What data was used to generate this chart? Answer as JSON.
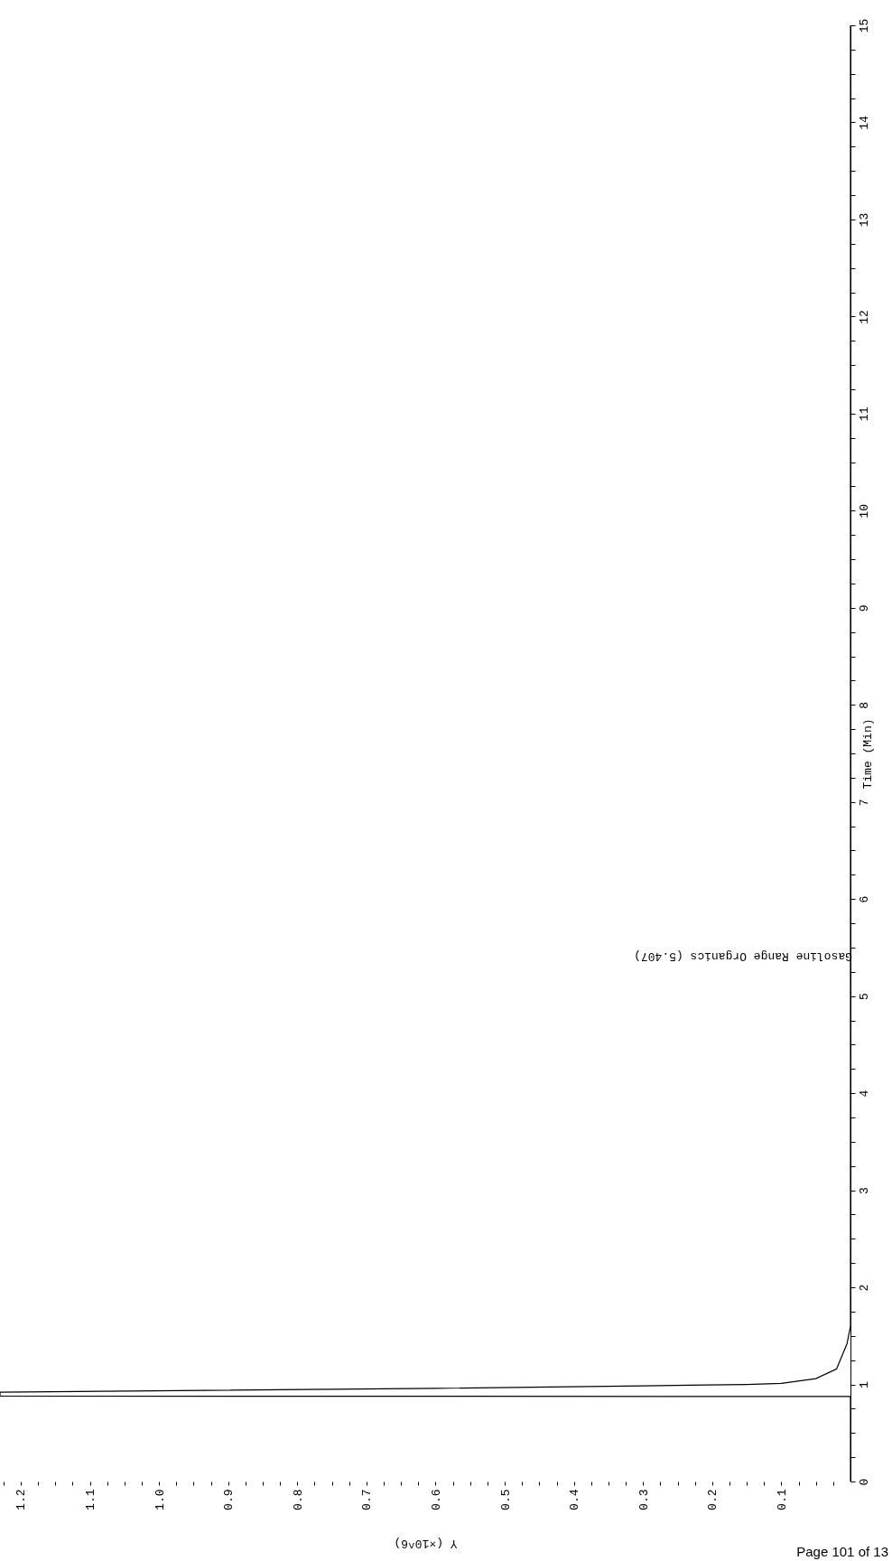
{
  "chart_data": {
    "type": "line",
    "xlabel": "Y (×10^6)",
    "ylabel": "Time (Min)",
    "series": [
      {
        "color": "#000000",
        "x": [
          0,
          0,
          0,
          1.23,
          1.23,
          0.6,
          0.3,
          0.15,
          0.1,
          0.05,
          0.02,
          0.005,
          0,
          0
        ],
        "values": [
          0,
          0.86,
          0.875,
          0.88,
          0.92,
          0.96,
          0.985,
          1.0,
          1.01,
          1.06,
          1.16,
          1.42,
          1.6,
          15
        ]
      }
    ],
    "xlim": [
      1.23,
      0
    ],
    "ylim": [
      0,
      15
    ],
    "yticks": [
      0,
      {
        "value": 0.25,
        "label": null
      },
      {
        "value": 0.5,
        "label": null
      },
      {
        "value": 0.75,
        "label": null
      },
      1,
      {
        "value": 1.25,
        "label": null
      },
      {
        "value": 1.5,
        "label": null
      },
      {
        "value": 1.75,
        "label": null
      },
      2,
      {
        "value": 2.25,
        "label": null
      },
      {
        "value": 2.5,
        "label": null
      },
      {
        "value": 2.75,
        "label": null
      },
      3,
      {
        "value": 3.25,
        "label": null
      },
      {
        "value": 3.5,
        "label": null
      },
      {
        "value": 3.75,
        "label": null
      },
      4,
      {
        "value": 4.25,
        "label": null
      },
      {
        "value": 4.5,
        "label": null
      },
      {
        "value": 4.75,
        "label": null
      },
      5,
      {
        "value": 5.25,
        "label": null
      },
      {
        "value": 5.5,
        "label": null
      },
      {
        "value": 5.75,
        "label": null
      },
      6,
      {
        "value": 6.25,
        "label": null
      },
      {
        "value": 6.5,
        "label": null
      },
      {
        "value": 6.75,
        "label": null
      },
      7,
      {
        "value": 7.25,
        "label": null
      },
      {
        "value": 7.5,
        "label": null
      },
      {
        "value": 7.75,
        "label": null
      },
      8,
      {
        "value": 8.25,
        "label": null
      },
      {
        "value": 8.5,
        "label": null
      },
      {
        "value": 8.75,
        "label": null
      },
      9,
      {
        "value": 9.25,
        "label": null
      },
      {
        "value": 9.5,
        "label": null
      },
      {
        "value": 9.75,
        "label": null
      },
      10,
      {
        "value": 10.25,
        "label": null
      },
      {
        "value": 10.5,
        "label": null
      },
      {
        "value": 10.75,
        "label": null
      },
      11,
      {
        "value": 11.25,
        "label": null
      },
      {
        "value": 11.5,
        "label": null
      },
      {
        "value": 11.75,
        "label": null
      },
      12,
      {
        "value": 12.25,
        "label": null
      },
      {
        "value": 12.5,
        "label": null
      },
      {
        "value": 12.75,
        "label": null
      },
      13,
      {
        "value": 13.25,
        "label": null
      },
      {
        "value": 13.5,
        "label": null
      },
      {
        "value": 13.75,
        "label": null
      },
      14,
      {
        "value": 14.25,
        "label": null
      },
      {
        "value": 14.5,
        "label": null
      },
      {
        "value": 14.75,
        "label": null
      },
      15
    ],
    "xticks": [
      {
        "value": 0.025,
        "label": null
      },
      {
        "value": 0.05,
        "label": null
      },
      {
        "value": 0.075,
        "label": null
      },
      0.1,
      {
        "value": 0.125,
        "label": null
      },
      {
        "value": 0.15,
        "label": null
      },
      {
        "value": 0.175,
        "label": null
      },
      0.2,
      {
        "value": 0.225,
        "label": null
      },
      {
        "value": 0.25,
        "label": null
      },
      {
        "value": 0.275,
        "label": null
      },
      0.3,
      {
        "value": 0.325,
        "label": null
      },
      {
        "value": 0.35,
        "label": null
      },
      {
        "value": 0.375,
        "label": null
      },
      0.4,
      {
        "value": 0.425,
        "label": null
      },
      {
        "value": 0.45,
        "label": null
      },
      {
        "value": 0.475,
        "label": null
      },
      0.5,
      {
        "value": 0.525,
        "label": null
      },
      {
        "value": 0.55,
        "label": null
      },
      {
        "value": 0.575,
        "label": null
      },
      0.6,
      {
        "value": 0.625,
        "label": null
      },
      {
        "value": 0.65,
        "label": null
      },
      {
        "value": 0.675,
        "label": null
      },
      0.7,
      {
        "value": 0.725,
        "label": null
      },
      {
        "value": 0.75,
        "label": null
      },
      {
        "value": 0.775,
        "label": null
      },
      0.8,
      {
        "value": 0.825,
        "label": null
      },
      {
        "value": 0.85,
        "label": null
      },
      {
        "value": 0.875,
        "label": null
      },
      0.9,
      {
        "value": 0.925,
        "label": null
      },
      {
        "value": 0.95,
        "label": null
      },
      {
        "value": 0.975,
        "label": null
      },
      {
        "value": 1,
        "label": "1.0"
      },
      {
        "value": 1.025,
        "label": null
      },
      {
        "value": 1.05,
        "label": null
      },
      {
        "value": 1.075,
        "label": null
      },
      1.1,
      {
        "value": 1.125,
        "label": null
      },
      {
        "value": 1.15,
        "label": null
      },
      {
        "value": 1.175,
        "label": null
      },
      1.2,
      {
        "value": 1.225,
        "label": null
      }
    ],
    "annotations": [
      {
        "text": "Gasoline Range Organics (5.407)",
        "x": 0,
        "y": 5.407
      },
      "Page 101 of 13"
    ]
  }
}
